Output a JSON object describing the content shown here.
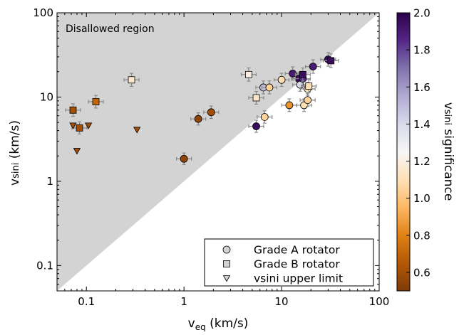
{
  "chart_data": {
    "type": "scatter",
    "title": "",
    "xlabel": "v_eq (km/s)",
    "ylabel": "vsini (km/s)",
    "xscale": "log",
    "yscale": "log",
    "xlim": [
      0.05,
      100
    ],
    "ylim": [
      0.05,
      100
    ],
    "x_ticks": [
      {
        "value": 0.1,
        "label": "0.1"
      },
      {
        "value": 1,
        "label": "1"
      },
      {
        "value": 10,
        "label": "10"
      },
      {
        "value": 100,
        "label": "100"
      }
    ],
    "y_ticks": [
      {
        "value": 0.1,
        "label": "0.1"
      },
      {
        "value": 1,
        "label": "1"
      },
      {
        "value": 10,
        "label": "10"
      },
      {
        "value": 100,
        "label": "100"
      }
    ],
    "region": {
      "label": "Disallowed region",
      "boundary": "vsini = v_eq",
      "color": "#d3d3d3"
    },
    "colorbar": {
      "label": "vsini significance",
      "min": 0.5,
      "max": 2.0,
      "ticks": [
        "0.6",
        "0.8",
        "1.0",
        "1.2",
        "1.4",
        "1.6",
        "1.8",
        "2.0"
      ],
      "colors": [
        "#7f3b08",
        "#b35806",
        "#e08214",
        "#fdb863",
        "#fee0b6",
        "#f7f7f7",
        "#d8daeb",
        "#b2abd2",
        "#8073ac",
        "#542788",
        "#2d004b"
      ]
    },
    "legend": {
      "position": "bottom-right",
      "entries": [
        {
          "marker": "circle",
          "label": "Grade A rotator"
        },
        {
          "marker": "square",
          "label": "Grade B rotator"
        },
        {
          "marker": "triangle-down",
          "label": "vsini upper limit"
        }
      ]
    },
    "series": [
      {
        "marker": "circle",
        "points": [
          {
            "x": 1.0,
            "y": 1.85,
            "c": 0.55
          },
          {
            "x": 1.4,
            "y": 5.5,
            "c": 0.55
          },
          {
            "x": 1.9,
            "y": 6.6,
            "c": 0.6
          },
          {
            "x": 5.5,
            "y": 4.5,
            "c": 1.95
          },
          {
            "x": 6.5,
            "y": 13.0,
            "c": 1.5
          },
          {
            "x": 6.7,
            "y": 5.8,
            "c": 1.05
          },
          {
            "x": 7.5,
            "y": 13.0,
            "c": 1.05
          },
          {
            "x": 10.0,
            "y": 16.0,
            "c": 1.1
          },
          {
            "x": 12.0,
            "y": 8.0,
            "c": 0.85
          },
          {
            "x": 13.0,
            "y": 19.0,
            "c": 1.9
          },
          {
            "x": 15.0,
            "y": 16.5,
            "c": 1.95
          },
          {
            "x": 15.5,
            "y": 14.0,
            "c": 1.4
          },
          {
            "x": 16.5,
            "y": 16.5,
            "c": 1.85
          },
          {
            "x": 17.0,
            "y": 8.0,
            "c": 1.1
          },
          {
            "x": 18.5,
            "y": 9.2,
            "c": 1.05
          },
          {
            "x": 18.5,
            "y": 12.5,
            "c": 1.1
          },
          {
            "x": 21.0,
            "y": 23.0,
            "c": 1.9
          },
          {
            "x": 30.0,
            "y": 28.0,
            "c": 1.95
          }
        ]
      },
      {
        "marker": "square",
        "points": [
          {
            "x": 0.073,
            "y": 7.0,
            "c": 0.6
          },
          {
            "x": 0.085,
            "y": 4.3,
            "c": 0.6
          },
          {
            "x": 0.125,
            "y": 8.8,
            "c": 0.7
          },
          {
            "x": 0.29,
            "y": 16.0,
            "c": 1.15
          },
          {
            "x": 4.6,
            "y": 18.5,
            "c": 1.2
          },
          {
            "x": 5.5,
            "y": 9.8,
            "c": 1.15
          },
          {
            "x": 16.5,
            "y": 18.5,
            "c": 1.95
          },
          {
            "x": 19.0,
            "y": 13.5,
            "c": 1.1
          },
          {
            "x": 32.0,
            "y": 27.0,
            "c": 1.95
          }
        ]
      },
      {
        "marker": "triangle-down",
        "points": [
          {
            "x": 0.073,
            "y": 4.6,
            "c": 0.6
          },
          {
            "x": 0.08,
            "y": 2.3,
            "c": 0.6
          },
          {
            "x": 0.105,
            "y": 4.6,
            "c": 0.6
          },
          {
            "x": 0.33,
            "y": 4.1,
            "c": 0.6
          }
        ]
      }
    ]
  }
}
